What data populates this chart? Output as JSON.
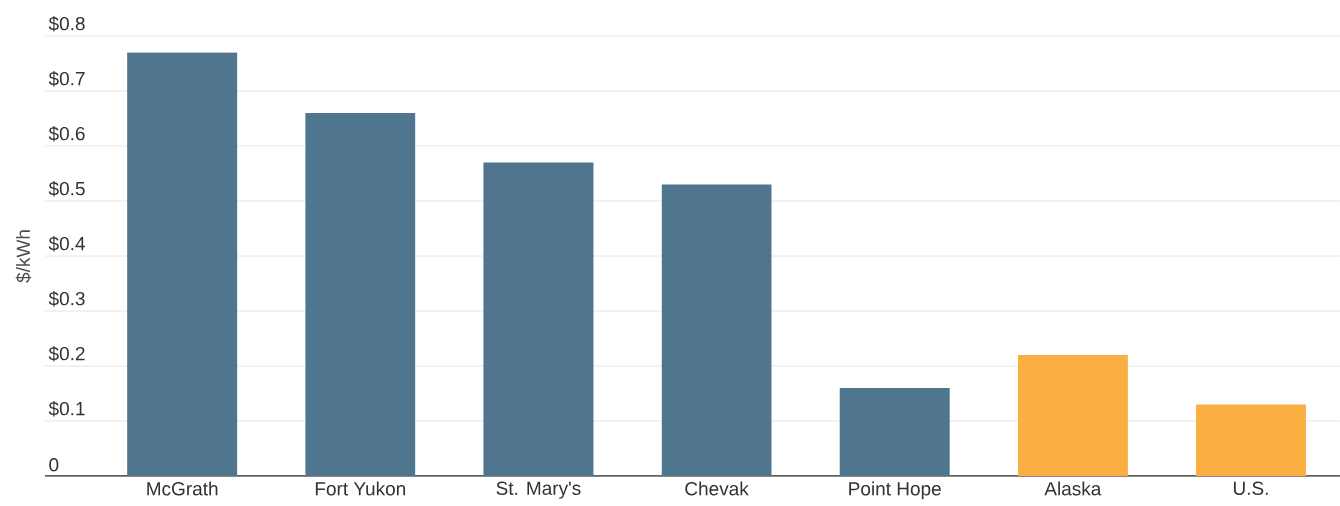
{
  "chart_data": {
    "type": "bar",
    "ylabel": "$/kWh",
    "categories": [
      "McGrath",
      "Fort Yukon",
      "St. Mary's",
      "Chevak",
      "Point Hope",
      "Alaska",
      "U.S."
    ],
    "values": [
      0.77,
      0.66,
      0.57,
      0.53,
      0.16,
      0.22,
      0.13
    ],
    "colors": [
      "#4f758f",
      "#4f758f",
      "#4f758f",
      "#4f758f",
      "#4f758f",
      "#fbaf42",
      "#fbaf42"
    ],
    "ylim": [
      0,
      0.8
    ],
    "yticks": [
      0,
      {
        "value": 0.1,
        "label": "$0.1"
      },
      {
        "value": 0.2,
        "label": "$0.2"
      },
      {
        "value": 0.3,
        "label": "$0.3"
      },
      {
        "value": 0.4,
        "label": "$0.4"
      },
      {
        "value": 0.5,
        "label": "$0.5"
      },
      {
        "value": 0.6,
        "label": "$0.6"
      },
      {
        "value": 0.7,
        "label": "$0.7"
      },
      {
        "value": 0.8,
        "label": "$0.8"
      }
    ],
    "grid": "y"
  }
}
